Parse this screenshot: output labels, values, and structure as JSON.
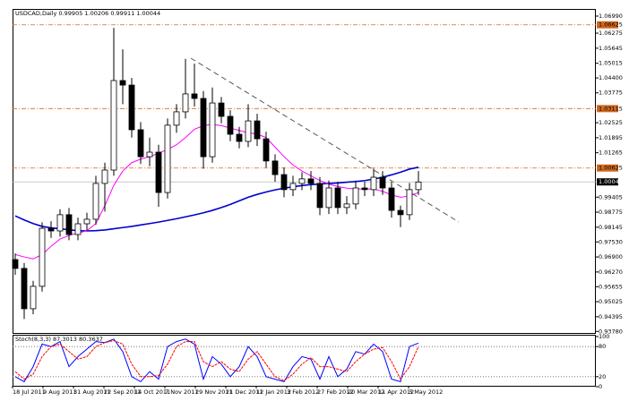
{
  "chart_data": [
    {
      "type": "candlestick",
      "title": "USDCAD,Daily 0.99905 1.00206 0.99911 1.00044",
      "xlabels": [
        "18 Jul 2011",
        "9 Aug 2011",
        "31 Aug 2011",
        "22 Sep 2011",
        "14 Oct 2011",
        "7 Nov 2011",
        "29 Nov 2011",
        "21 Dec 2011",
        "12 Jan 2012",
        "3 Feb 2012",
        "27 Feb 2012",
        "20 Mar 2012",
        "11 Apr 2012",
        "3 May 2012"
      ],
      "open": [
        0.9679,
        0.9642,
        0.9473,
        0.9567,
        0.981,
        0.9799,
        0.9867,
        0.9784,
        0.9829,
        0.9848,
        0.9998,
        1.0054,
        1.0429,
        1.041,
        1.0223,
        1.011,
        1.0129,
        0.996,
        1.0242,
        1.0298,
        1.0373,
        1.0354,
        1.011,
        1.0335,
        1.0279,
        1.0204,
        1.0174,
        1.026,
        1.0185,
        1.0092,
        1.0035,
        0.9972,
        0.9998,
        1.0017,
        0.9998,
        0.9897,
        0.9979,
        0.9897,
        0.9912,
        0.9979,
        0.9972,
        1.0024,
        0.9979,
        0.9885,
        0.9867,
        0.9972
      ],
      "high": [
        0.9705,
        0.9665,
        0.959,
        0.9835,
        0.984,
        0.989,
        0.9895,
        0.9855,
        0.9875,
        1.003,
        1.0085,
        1.065,
        1.056,
        1.044,
        1.0255,
        1.019,
        1.016,
        1.027,
        1.033,
        1.052,
        1.05,
        1.0385,
        1.04,
        1.036,
        1.0305,
        1.0235,
        1.033,
        1.029,
        1.0215,
        1.012,
        1.0065,
        1.003,
        1.0045,
        1.005,
        1.0025,
        1.001,
        1.0005,
        0.9945,
        1.001,
        1.0005,
        1.006,
        1.005,
        1.0005,
        0.9905,
        1.0,
        1.005
      ],
      "low": [
        0.9615,
        0.943,
        0.945,
        0.9545,
        0.977,
        0.9775,
        0.976,
        0.976,
        0.98,
        0.9825,
        0.988,
        1.003,
        1.033,
        1.019,
        1.008,
        1.007,
        0.99,
        0.9935,
        1.021,
        1.027,
        1.032,
        1.006,
        1.0085,
        1.025,
        1.0175,
        1.0145,
        1.015,
        1.0155,
        1.0065,
        1.0005,
        0.994,
        0.9945,
        0.997,
        0.997,
        0.9865,
        0.987,
        0.987,
        0.987,
        0.989,
        0.9945,
        0.9945,
        0.995,
        0.9855,
        0.9815,
        0.9845,
        0.995
      ],
      "close": [
        0.9642,
        0.9473,
        0.9567,
        0.981,
        0.9799,
        0.9867,
        0.9784,
        0.9829,
        0.9848,
        0.9998,
        1.0054,
        1.0429,
        1.041,
        1.0223,
        1.011,
        1.0129,
        0.996,
        1.0242,
        1.0298,
        1.0373,
        1.0354,
        1.011,
        1.0335,
        1.0279,
        1.0204,
        1.0174,
        1.026,
        1.0185,
        1.0092,
        1.0035,
        0.9972,
        0.9998,
        1.0017,
        0.9998,
        0.9897,
        0.9979,
        0.9897,
        0.9912,
        0.9979,
        0.9972,
        1.0024,
        0.9979,
        0.9885,
        0.9867,
        0.9972,
        1.0004
      ],
      "overlays": [
        {
          "color": "#0000cc",
          "values": [
            0.9862,
            0.9845,
            0.983,
            0.9818,
            0.9812,
            0.9808,
            0.9804,
            0.98,
            0.9799,
            0.98,
            0.9803,
            0.9808,
            0.9813,
            0.9818,
            0.9824,
            0.983,
            0.9836,
            0.9843,
            0.985,
            0.9858,
            0.9866,
            0.9875,
            0.9885,
            0.9897,
            0.991,
            0.9925,
            0.994,
            0.9952,
            0.9962,
            0.9971,
            0.9978,
            0.9984,
            0.9989,
            0.9993,
            0.9996,
            0.9998,
            1.0,
            1.0003,
            1.0006,
            1.001,
            1.0016,
            1.0024,
            1.0034,
            1.0045,
            1.0058,
            1.0066
          ]
        },
        {
          "color": "#ff00ff",
          "values": [
            0.97,
            0.969,
            0.9682,
            0.97,
            0.9735,
            0.9765,
            0.978,
            0.979,
            0.98,
            0.983,
            0.9905,
            0.999,
            1.005,
            1.0085,
            1.01,
            1.011,
            1.0125,
            1.014,
            1.016,
            1.019,
            1.0225,
            1.024,
            1.0245,
            1.024,
            1.023,
            1.022,
            1.021,
            1.0205,
            1.019,
            1.015,
            1.011,
            1.0075,
            1.005,
            1.003,
            1.001,
            0.9995,
            0.9985,
            0.9978,
            0.9975,
            0.9975,
            0.9975,
            0.9965,
            0.995,
            0.994,
            0.9945,
            0.996
          ]
        }
      ],
      "ylim": [
        0.93715,
        1.0729
      ],
      "yticks": [
        {
          "value": 1.0699,
          "label": "1.06990"
        },
        {
          "value": 1.06275,
          "label": "1.06275"
        },
        {
          "value": 1.05645,
          "label": "1.05645"
        },
        {
          "value": 1.05015,
          "label": "1.05015"
        },
        {
          "value": 1.044,
          "label": "1.04400"
        },
        {
          "value": 1.03775,
          "label": "1.03775"
        },
        {
          "value": 1.02525,
          "label": "1.02525"
        },
        {
          "value": 1.01895,
          "label": "1.01895"
        },
        {
          "value": 1.01265,
          "label": "1.01265"
        },
        {
          "value": 0.99405,
          "label": "0.99405"
        },
        {
          "value": 0.98775,
          "label": "0.98775"
        },
        {
          "value": 0.98145,
          "label": "0.98145"
        },
        {
          "value": 0.9753,
          "label": "0.97530"
        },
        {
          "value": 0.969,
          "label": "0.96900"
        },
        {
          "value": 0.9627,
          "label": "0.96270"
        },
        {
          "value": 0.95655,
          "label": "0.95655"
        },
        {
          "value": 0.95025,
          "label": "0.95025"
        },
        {
          "value": 0.94395,
          "label": "0.94395"
        },
        {
          "value": 0.9378,
          "label": "0.93780"
        }
      ],
      "levels": [
        1.06625,
        1.03115,
        1.00625
      ],
      "level_color": "#d2691e",
      "current_price": 1.00044
    },
    {
      "type": "line",
      "title": "Stoch(8,3,3) 87.3013 80.3637",
      "series": [
        {
          "color": "#0000ff",
          "values": [
            20,
            10,
            40,
            85,
            80,
            90,
            40,
            60,
            75,
            90,
            88,
            95,
            70,
            20,
            10,
            30,
            15,
            80,
            90,
            95,
            85,
            15,
            60,
            45,
            20,
            40,
            80,
            60,
            20,
            15,
            10,
            40,
            60,
            55,
            15,
            60,
            20,
            35,
            70,
            65,
            85,
            70,
            15,
            10,
            80,
            87
          ]
        },
        {
          "color": "#ff0000",
          "values": [
            30,
            15,
            25,
            60,
            80,
            85,
            70,
            55,
            60,
            80,
            88,
            92,
            85,
            45,
            20,
            20,
            22,
            45,
            80,
            90,
            90,
            50,
            40,
            50,
            35,
            30,
            55,
            70,
            45,
            20,
            12,
            25,
            45,
            58,
            40,
            40,
            35,
            30,
            50,
            65,
            75,
            78,
            50,
            15,
            40,
            80
          ]
        }
      ],
      "ylim": [
        0,
        100
      ],
      "yticks": [
        100,
        80,
        20,
        0
      ],
      "levels": [
        80,
        20
      ]
    }
  ]
}
